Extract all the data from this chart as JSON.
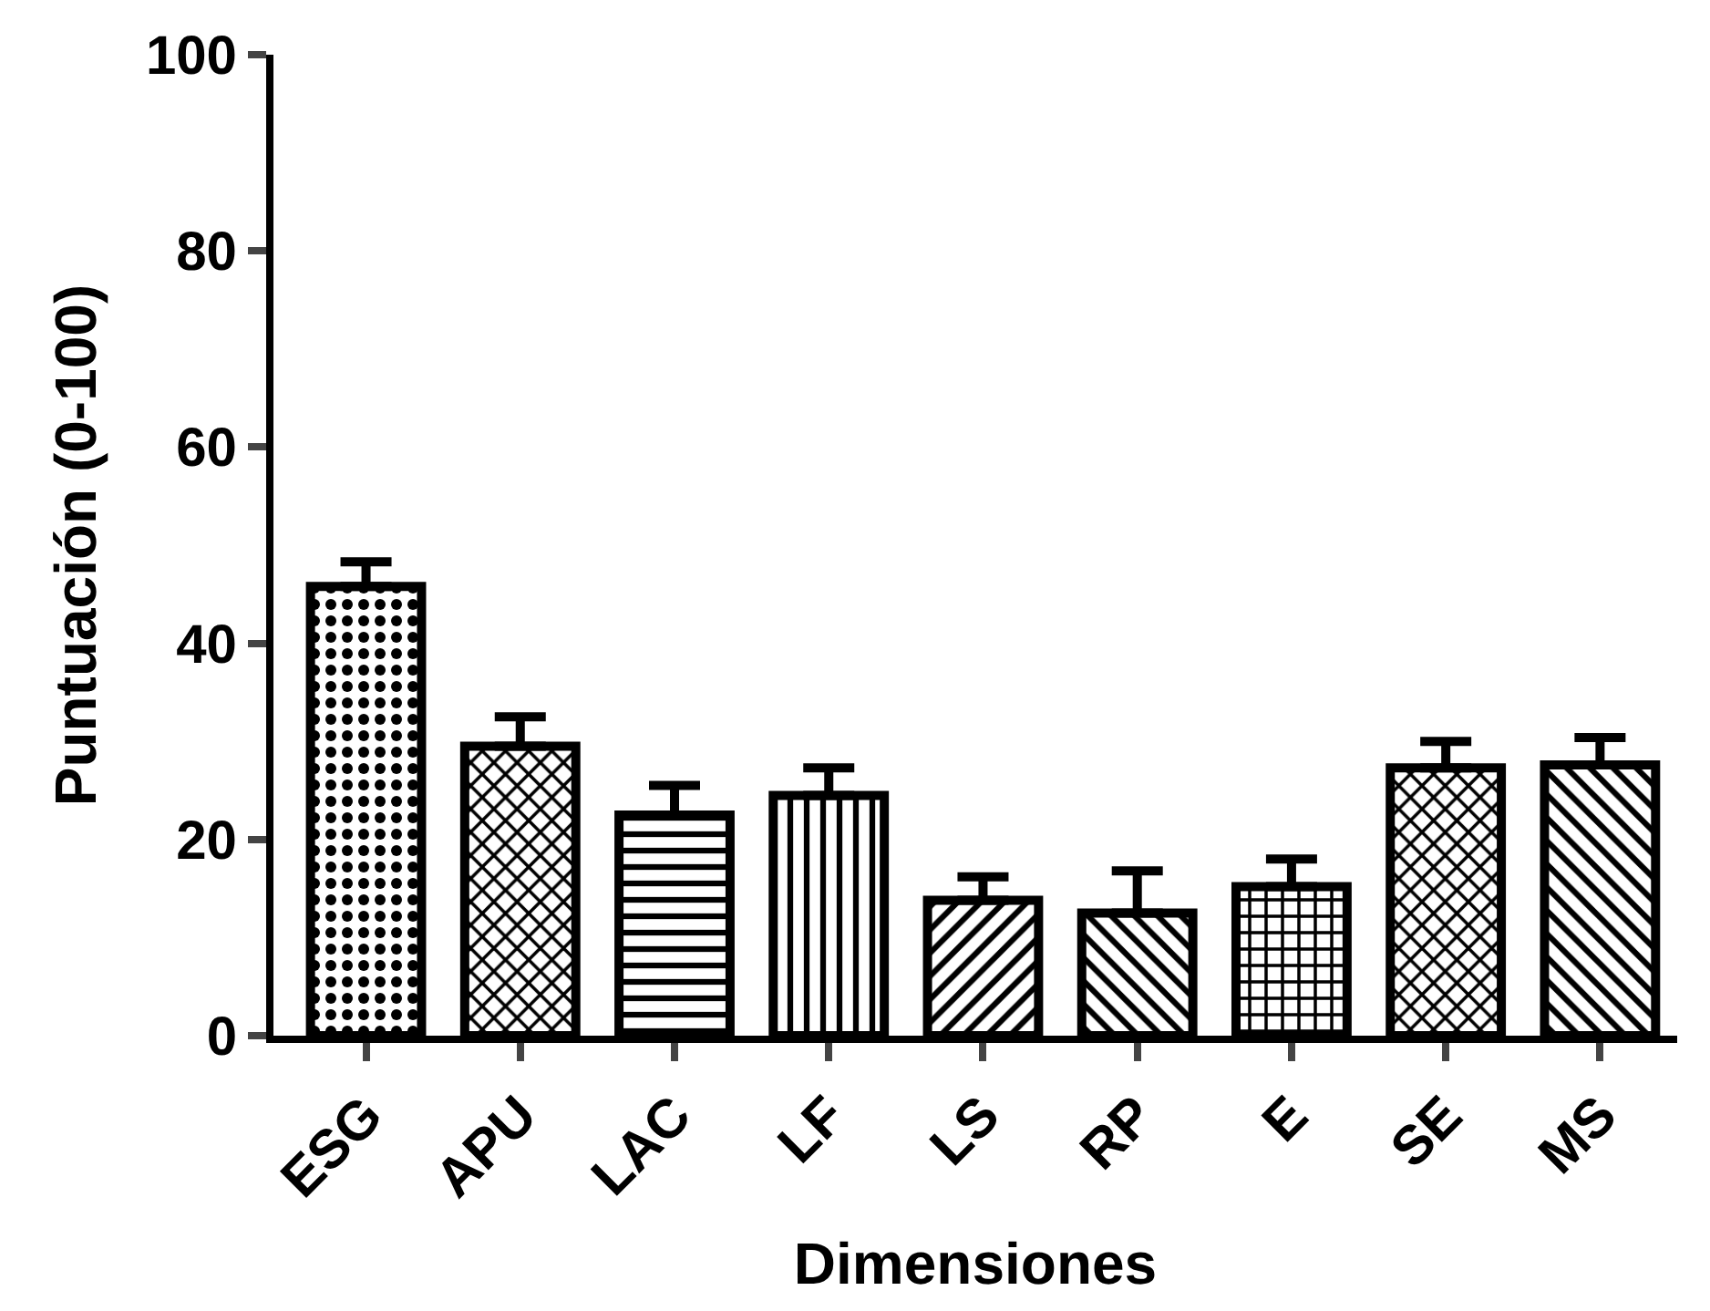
{
  "chart_data": {
    "type": "bar",
    "xlabel": "Dimensiones",
    "ylabel": "Puntuación (0-100)",
    "categories": [
      "ESG",
      "APU",
      "LAC",
      "LF",
      "LS",
      "RP",
      "E",
      "SE",
      "MS"
    ],
    "values": [
      45.8,
      29.5,
      22.5,
      24.5,
      13.8,
      12.5,
      15.2,
      27.3,
      27.6
    ],
    "errors": [
      [
        45.8,
        48.3
      ],
      [
        29.5,
        32.5
      ],
      [
        22.5,
        25.5
      ],
      [
        24.5,
        27.3
      ],
      [
        13.8,
        16.2
      ],
      [
        12.5,
        16.8
      ],
      [
        15.2,
        18.0
      ],
      [
        27.3,
        30.0
      ],
      [
        27.6,
        30.4
      ]
    ],
    "color": "#000000",
    "ylim": [
      0,
      100
    ],
    "yticks": [
      0,
      20,
      40,
      60,
      80,
      100
    ],
    "grid": false,
    "legend": false
  }
}
